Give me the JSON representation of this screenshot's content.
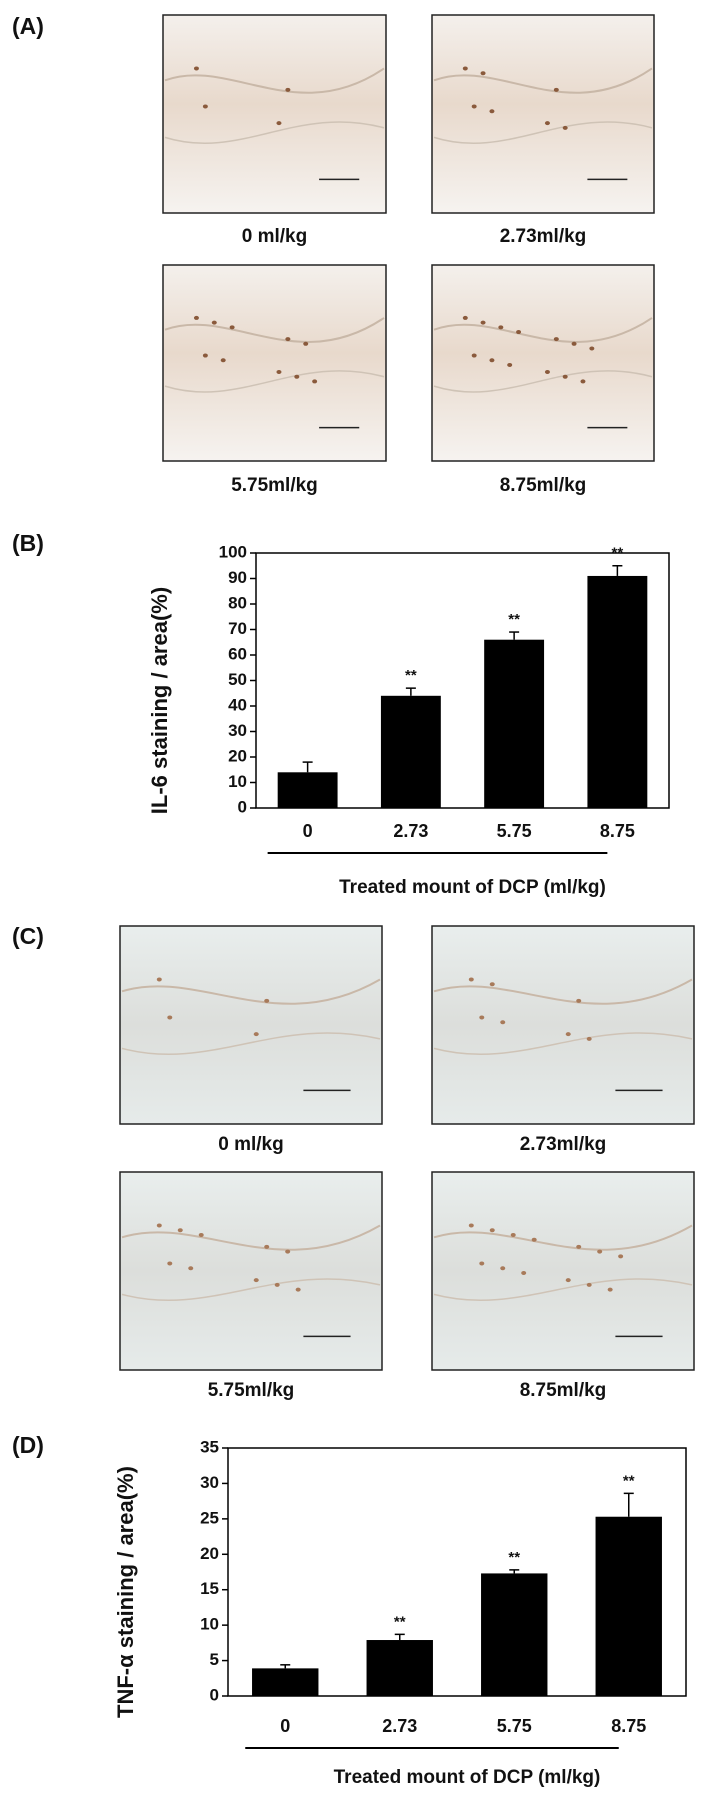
{
  "panels": {
    "A": {
      "letter": "(A)",
      "images": [
        {
          "label": "0 ml/kg"
        },
        {
          "label": "2.73ml/kg"
        },
        {
          "label": "5.75ml/kg"
        },
        {
          "label": "8.75ml/kg"
        }
      ]
    },
    "B": {
      "letter": "(B)"
    },
    "C": {
      "letter": "(C)",
      "images": [
        {
          "label": "0 ml/kg"
        },
        {
          "label": "2.73ml/kg"
        },
        {
          "label": "5.75ml/kg"
        },
        {
          "label": "8.75ml/kg"
        }
      ]
    },
    "D": {
      "letter": "(D)"
    }
  },
  "chart_data": [
    {
      "type": "bar",
      "y_label": "IL-6  staining / area(%)",
      "x_label": "Treated mount of DCP (ml/kg)",
      "categories": [
        "0",
        "2.73",
        "5.75",
        "8.75"
      ],
      "values": [
        14,
        44,
        66,
        91
      ],
      "errors": [
        4,
        3,
        3,
        4
      ],
      "significance": [
        null,
        "**",
        "**",
        "**"
      ],
      "color": "#000000",
      "ylim": [
        0,
        100
      ],
      "yticks": [
        0,
        10,
        20,
        30,
        40,
        50,
        60,
        70,
        80,
        90,
        100
      ]
    },
    {
      "type": "bar",
      "y_label": "TNF-α staining / area(%)",
      "x_label": "Treated mount of DCP (ml/kg)",
      "categories": [
        "0",
        "2.73",
        "5.75",
        "8.75"
      ],
      "values": [
        3.9,
        7.9,
        17.3,
        25.3
      ],
      "errors": [
        0.5,
        0.8,
        0.5,
        3.3
      ],
      "significance": [
        null,
        "**",
        "**",
        "**"
      ],
      "color": "#000000",
      "ylim": [
        0,
        35
      ],
      "yticks": [
        0,
        5,
        10,
        15,
        20,
        25,
        30,
        35
      ]
    }
  ]
}
